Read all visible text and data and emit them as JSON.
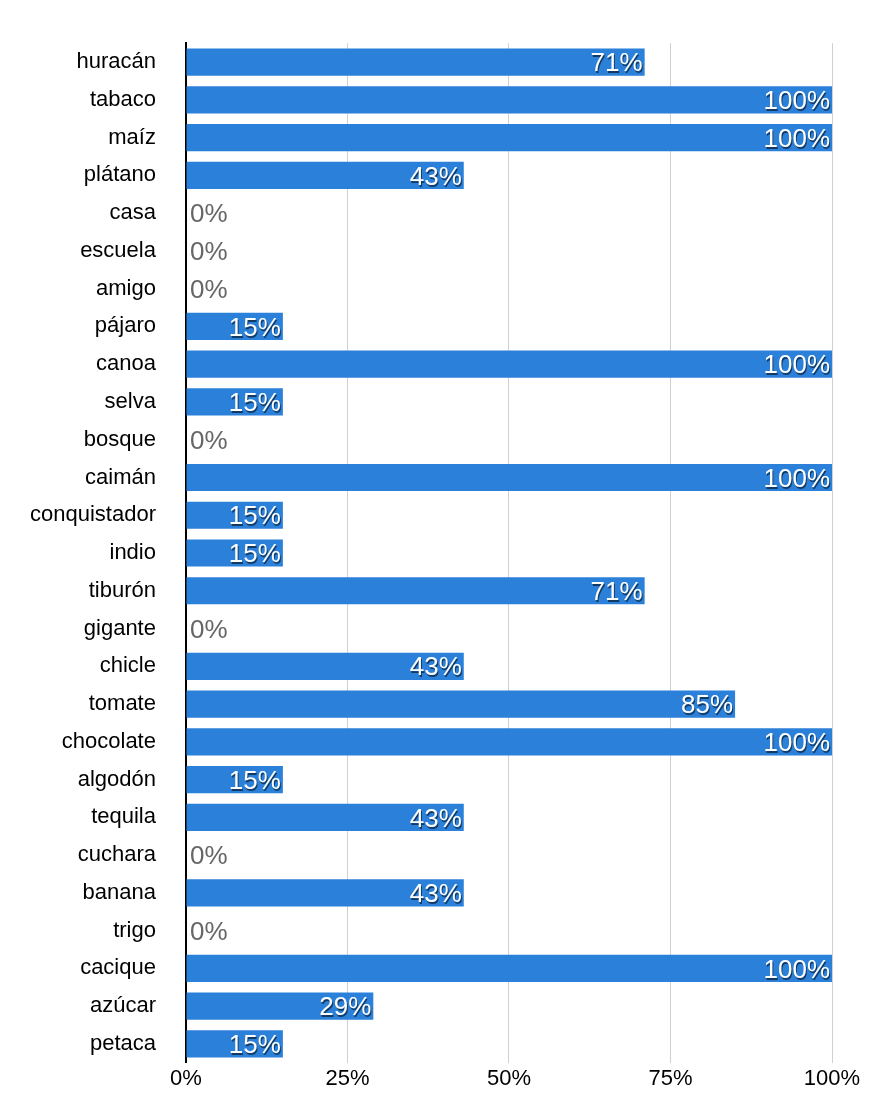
{
  "chart_data": {
    "type": "bar",
    "orientation": "horizontal",
    "categories": [
      "huracán",
      "tabaco",
      "maíz",
      "plátano",
      "casa",
      "escuela",
      "amigo",
      "pájaro",
      "canoa",
      "selva",
      "bosque",
      "caimán",
      "conquistador",
      "indio",
      "tiburón",
      "gigante",
      "chicle",
      "tomate",
      "chocolate",
      "algodón",
      "tequila",
      "cuchara",
      "banana",
      "trigo",
      "cacique",
      "azúcar",
      "petaca"
    ],
    "values": [
      71,
      100,
      100,
      43,
      0,
      0,
      0,
      15,
      100,
      15,
      0,
      100,
      15,
      15,
      71,
      0,
      43,
      85,
      100,
      15,
      43,
      0,
      43,
      0,
      100,
      29,
      15
    ],
    "value_labels": [
      "71%",
      "100%",
      "100%",
      "43%",
      "0%",
      "0%",
      "0%",
      "15%",
      "100%",
      "15%",
      "0%",
      "100%",
      "15%",
      "15%",
      "71%",
      "0%",
      "43%",
      "85%",
      "100%",
      "15%",
      "43%",
      "0%",
      "43%",
      "0%",
      "100%",
      "29%",
      "15%"
    ],
    "color": "#2b80d9",
    "xlim": [
      0,
      100
    ],
    "xticks": [
      {
        "value": 0,
        "label": "0%"
      },
      {
        "value": 25,
        "label": "25%"
      },
      {
        "value": 50,
        "label": "50%"
      },
      {
        "value": 75,
        "label": "75%"
      },
      {
        "value": 100,
        "label": "100%"
      }
    ],
    "grid": "x"
  }
}
